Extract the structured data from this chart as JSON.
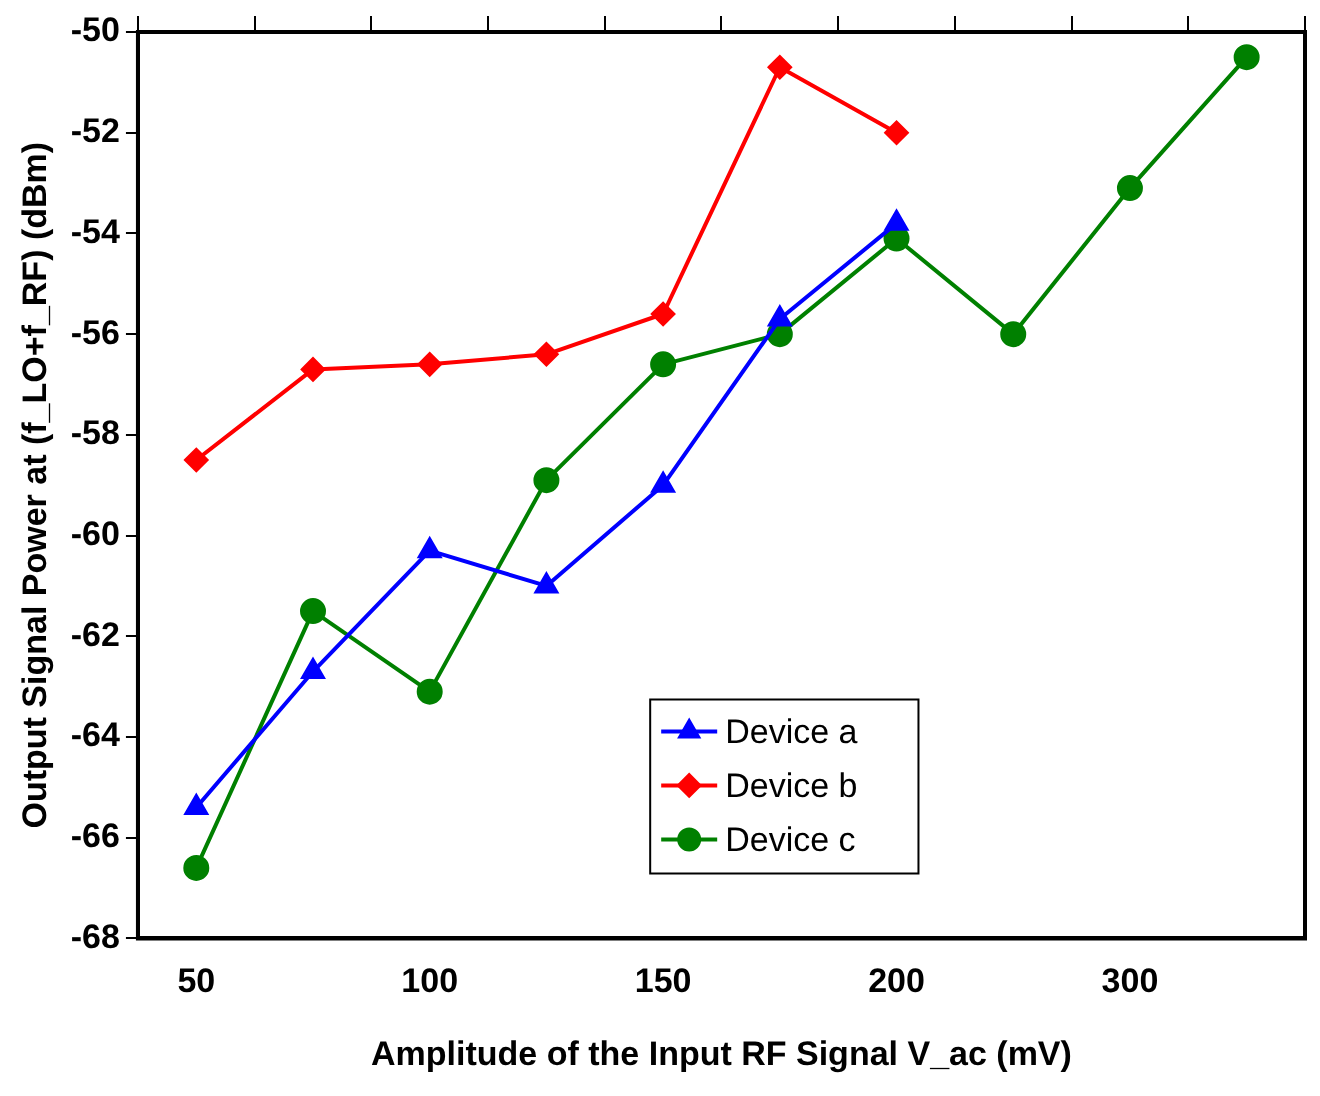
{
  "chart_data": {
    "type": "line",
    "xlabel": "Amplitude of the Input RF Signal V_ac (mV)",
    "ylabel": "Output Signal Power at (f_LO+f_RF) (dBm)",
    "categories": [
      "50",
      null,
      "100",
      null,
      "150",
      null,
      "200",
      null,
      "300",
      null
    ],
    "ylim": [
      -68,
      -50
    ],
    "yticks": [
      -68,
      -66,
      -64,
      -62,
      -60,
      -58,
      -56,
      -54,
      -52,
      -50
    ],
    "grid": false,
    "legend": "bottom",
    "series": [
      {
        "name": "Device a",
        "color": "#0000ff",
        "marker": "triangle",
        "values": [
          -65.4,
          -62.7,
          -60.3,
          -61.0,
          -59.0,
          -55.7,
          -53.8,
          null,
          null,
          null
        ]
      },
      {
        "name": "Device b",
        "color": "#ff0000",
        "marker": "diamond",
        "values": [
          -58.5,
          -56.7,
          -56.6,
          -56.4,
          -55.6,
          -50.7,
          -52.0,
          null,
          null,
          null
        ]
      },
      {
        "name": "Device c",
        "color": "#008000",
        "marker": "circle",
        "values": [
          -66.6,
          -61.5,
          -63.1,
          -58.9,
          -56.6,
          -56.0,
          -54.1,
          -56.0,
          -53.1,
          -50.5
        ]
      }
    ]
  }
}
